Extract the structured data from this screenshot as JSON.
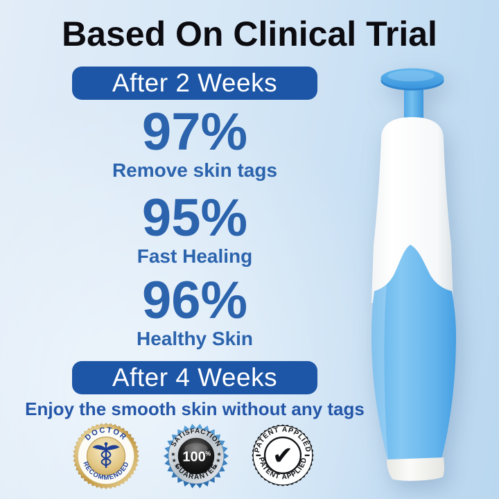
{
  "page": {
    "title": "Based On Clinical Trial"
  },
  "sections": {
    "week2": {
      "banner": "After 2 Weeks",
      "stats": [
        {
          "value": "97%",
          "label": "Remove skin tags"
        },
        {
          "value": "95%",
          "label": "Fast Healing"
        },
        {
          "value": "96%",
          "label": "Healthy Skin"
        }
      ]
    },
    "week4": {
      "banner": "After 4 Weeks",
      "caption": "Enjoy the smooth skin without any tags"
    }
  },
  "badges": {
    "doctor": {
      "top": "DOCTOR",
      "bottom": "RECOMMENDED",
      "icon": "caduceus-icon"
    },
    "satisfaction": {
      "top": "SATISFACTION",
      "bottom": "GUARANTEE",
      "center_value": "100",
      "center_percent": "%",
      "star": "★"
    },
    "patent": {
      "arc_text": "PATENT APPLIED",
      "icon": "checkmark-icon",
      "check": "✔"
    }
  },
  "product": {
    "icon": "skin-tag-removal-device"
  },
  "colors": {
    "banner_blue": "#1d56a6",
    "stat_blue": "#2b63ad",
    "caption_blue": "#2456a8",
    "title_black": "#0b0b10",
    "device_cap_blue": "#47a2e5",
    "device_grip_blue": "#6ab7ee",
    "badge_gold": "#c9a44f",
    "badge_starburst_blue": "#3d85c6",
    "background_blue": "#c7dff4"
  }
}
